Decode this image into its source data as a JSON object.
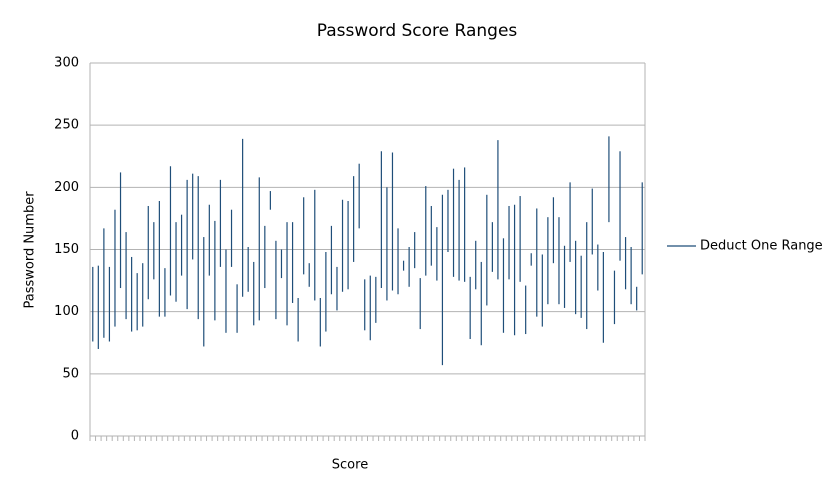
{
  "chart_data": {
    "type": "range",
    "title": "Password Score Ranges",
    "x_label": "Score",
    "y_label": "Password Number",
    "categories": [
      null,
      null,
      null,
      null,
      null,
      null,
      null,
      null,
      null,
      null,
      null,
      null,
      null,
      null,
      null,
      null,
      null,
      null,
      null,
      null,
      null,
      null,
      null,
      null,
      null,
      null,
      null,
      null,
      null,
      null,
      null,
      null,
      null,
      null,
      null,
      null,
      null,
      null,
      null,
      null,
      null,
      null,
      null,
      null,
      null,
      null,
      null,
      null,
      null,
      null,
      null,
      null,
      null,
      null,
      null,
      null,
      null,
      null,
      null,
      null,
      null,
      null,
      null,
      null,
      null,
      null,
      null,
      null,
      null,
      null,
      null,
      null,
      null,
      null,
      null,
      null,
      null,
      null,
      null,
      null,
      null,
      null,
      null,
      null,
      null,
      null,
      null,
      null,
      null,
      null,
      null,
      null,
      null,
      null,
      null,
      null,
      null,
      null,
      null,
      null
    ],
    "series": [
      {
        "name": "Deduct One Range",
        "color": "#1f4e79",
        "low": [
          76,
          70,
          79,
          76,
          88,
          119,
          94,
          84,
          85,
          88,
          110,
          126,
          96,
          96,
          113,
          108,
          129,
          102,
          142,
          94,
          72,
          129,
          93,
          136,
          83,
          136,
          83,
          112,
          116,
          89,
          93,
          119,
          182,
          94,
          127,
          89,
          107,
          76,
          130,
          120,
          109,
          72,
          84,
          114,
          101,
          116,
          118,
          140,
          167,
          85,
          77,
          91,
          119,
          109,
          117,
          114,
          133,
          120,
          135,
          86,
          129,
          137,
          125,
          57,
          148,
          128,
          125,
          124,
          78,
          118,
          73,
          105,
          132,
          126,
          83,
          126,
          81,
          124,
          82,
          137,
          96,
          88,
          106,
          139,
          106,
          103,
          140,
          98,
          95,
          86,
          146,
          117,
          75,
          172,
          90,
          141,
          118,
          106,
          101,
          130
        ],
        "high": [
          136,
          137,
          167,
          136,
          182,
          212,
          164,
          144,
          131,
          139,
          185,
          172,
          189,
          135,
          217,
          172,
          178,
          206,
          211,
          209,
          160,
          186,
          173,
          206,
          150,
          182,
          122,
          239,
          152,
          140,
          208,
          169,
          197,
          157,
          150,
          172,
          172,
          111,
          192,
          139,
          198,
          111,
          148,
          169,
          136,
          190,
          189,
          209,
          219,
          126,
          129,
          128,
          229,
          200,
          228,
          167,
          141,
          152,
          164,
          127,
          201,
          185,
          168,
          194,
          198,
          215,
          206,
          216,
          128,
          157,
          140,
          194,
          172,
          238,
          159,
          185,
          186,
          193,
          121,
          147,
          183,
          146,
          176,
          192,
          176,
          153,
          204,
          157,
          145,
          172,
          199,
          154,
          148,
          241,
          133,
          229,
          160,
          152,
          120,
          204
        ]
      }
    ],
    "ylim": [
      0,
      300
    ],
    "yticks": [
      0,
      50,
      100,
      150,
      200,
      250,
      300
    ],
    "grid": true,
    "legend": "right"
  }
}
